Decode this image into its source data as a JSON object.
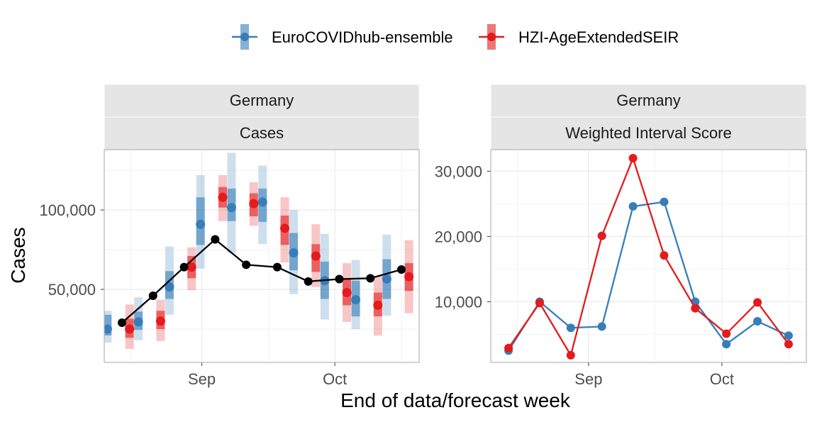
{
  "legend": {
    "items": [
      {
        "name": "EuroCOVIDhub-ensemble",
        "color": "#377EB8"
      },
      {
        "name": "HZI-AgeExtendedSEIR",
        "color": "#E41A1C"
      }
    ]
  },
  "axes": {
    "xlabel": "End of data/forecast week",
    "ylabel": "Cases"
  },
  "chart_data": [
    {
      "type": "line",
      "strip_top": "Germany",
      "strip_bottom": "Cases",
      "ylim": [
        4000,
        138000
      ],
      "yticks": [
        50000,
        100000
      ],
      "ytick_labels": [
        "50,000",
        "100,000"
      ],
      "xticks": [
        "Sep",
        "Oct"
      ],
      "grid": true,
      "x": [
        "2021-08-14",
        "2021-08-21",
        "2021-08-28",
        "2021-09-04",
        "2021-09-11",
        "2021-09-18",
        "2021-09-25",
        "2021-10-02",
        "2021-10-09",
        "2021-10-16"
      ],
      "observed": {
        "color": "#000000",
        "values": [
          29000,
          46000,
          64000,
          81500,
          65500,
          64000,
          55000,
          56500,
          57000,
          62500
        ]
      },
      "series": [
        {
          "name": "EuroCOVIDhub-ensemble",
          "color": "#377EB8",
          "median": [
            25000,
            29500,
            51500,
            91000,
            101500,
            105000,
            73000,
            55500,
            43500,
            56500
          ],
          "inner": [
            [
              21000,
              34000
            ],
            [
              24500,
              36000
            ],
            [
              44000,
              61500
            ],
            [
              78000,
              108000
            ],
            [
              93000,
              113500
            ],
            [
              92500,
              113500
            ],
            [
              62000,
              85500
            ],
            [
              44000,
              67500
            ],
            [
              33000,
              55500
            ],
            [
              44000,
              69000
            ]
          ],
          "outer": [
            [
              16500,
              36500
            ],
            [
              18000,
              45000
            ],
            [
              34000,
              77000
            ],
            [
              63000,
              122000
            ],
            [
              73000,
              136000
            ],
            [
              78500,
              128000
            ],
            [
              47000,
              100000
            ],
            [
              31000,
              85000
            ],
            [
              25000,
              68500
            ],
            [
              33500,
              84500
            ]
          ]
        },
        {
          "name": "HZI-AgeExtendedSEIR",
          "color": "#E41A1C",
          "median": [
            25000,
            30000,
            64000,
            108000,
            104000,
            88500,
            71000,
            48000,
            40000,
            58000
          ],
          "inner": [
            [
              19500,
              31500
            ],
            [
              25000,
              36500
            ],
            [
              57000,
              71000
            ],
            [
              101500,
              114500
            ],
            [
              96000,
              110500
            ],
            [
              78000,
              96500
            ],
            [
              61000,
              78500
            ],
            [
              40000,
              56500
            ],
            [
              33000,
              48000
            ],
            [
              49000,
              66500
            ]
          ],
          "outer": [
            [
              12500,
              40500
            ],
            [
              17500,
              43500
            ],
            [
              49500,
              76500
            ],
            [
              93000,
              122000
            ],
            [
              90000,
              117500
            ],
            [
              67000,
              108000
            ],
            [
              51500,
              91000
            ],
            [
              29500,
              66500
            ],
            [
              21000,
              58500
            ],
            [
              35000,
              81000
            ]
          ]
        }
      ]
    },
    {
      "type": "line",
      "strip_top": "Germany",
      "strip_bottom": "Weighted Interval Score",
      "ylim": [
        700,
        33300
      ],
      "yticks": [
        10000,
        20000,
        30000
      ],
      "ytick_labels": [
        "10,000",
        "20,000",
        "30,000"
      ],
      "xticks": [
        "Sep",
        "Oct"
      ],
      "grid": true,
      "x": [
        "2021-08-14",
        "2021-08-21",
        "2021-08-28",
        "2021-09-04",
        "2021-09-11",
        "2021-09-18",
        "2021-09-25",
        "2021-10-02",
        "2021-10-09",
        "2021-10-16"
      ],
      "series": [
        {
          "name": "EuroCOVIDhub-ensemble",
          "color": "#377EB8",
          "values": [
            2500,
            10000,
            6000,
            6200,
            24600,
            25300,
            10000,
            3500,
            7000,
            4800
          ]
        },
        {
          "name": "HZI-AgeExtendedSEIR",
          "color": "#E41A1C",
          "values": [
            2900,
            9800,
            1800,
            20100,
            32000,
            17100,
            9000,
            5100,
            9900,
            3500
          ]
        }
      ]
    }
  ]
}
